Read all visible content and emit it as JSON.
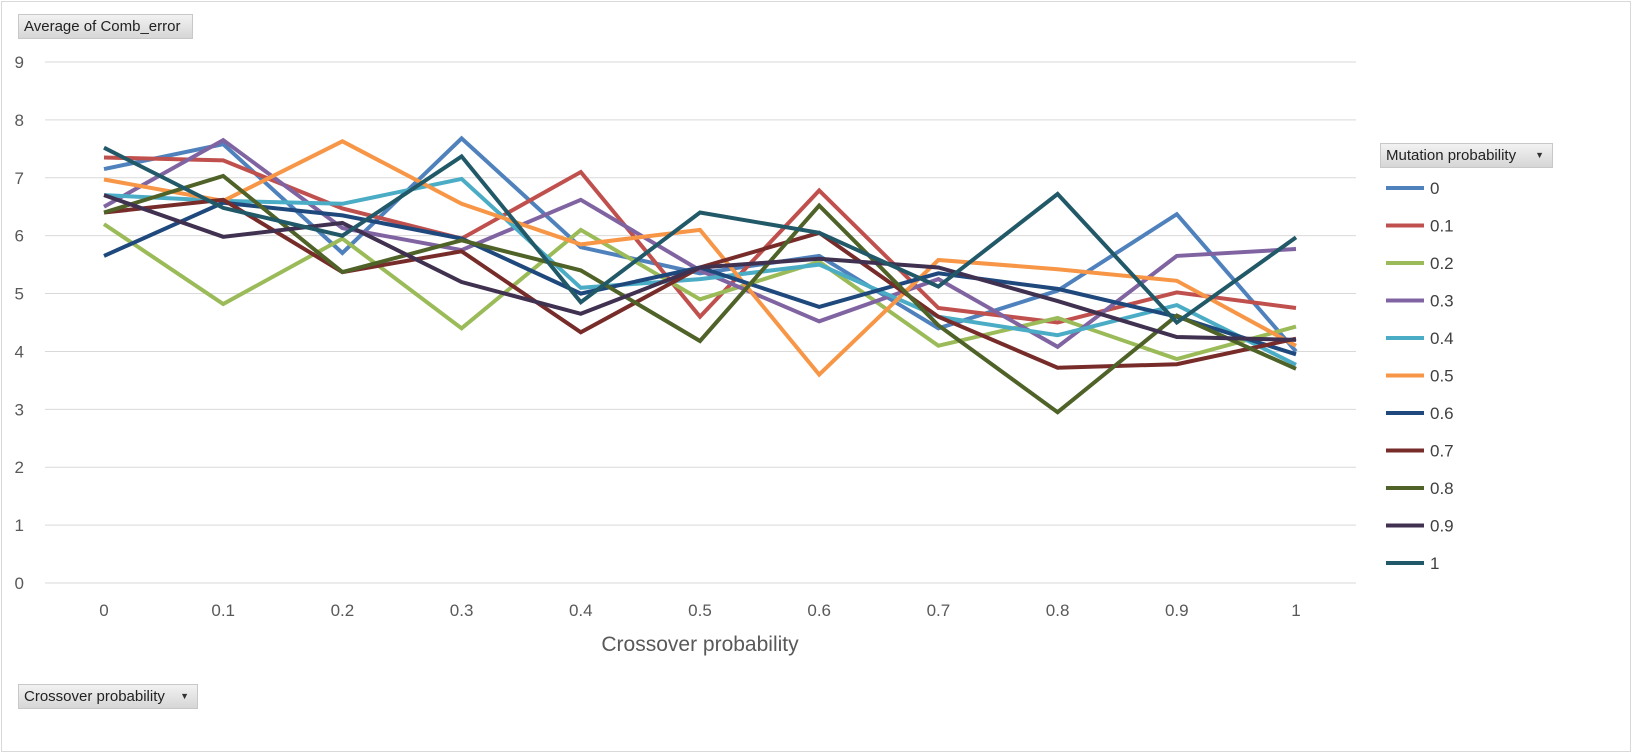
{
  "value_field_label": "Average of Comb_error",
  "axis_field_label": "Crossover probability",
  "legend_field_label": "Mutation probability",
  "dropdown_icon": "caret-down-icon",
  "chart_data": {
    "type": "line",
    "xlabel": "Crossover probability",
    "ylabel": "",
    "categories": [
      "0",
      "0.1",
      "0.2",
      "0.3",
      "0.4",
      "0.5",
      "0.6",
      "0.7",
      "0.8",
      "0.9",
      "1"
    ],
    "yticks": [
      "0",
      "1",
      "2",
      "3",
      "4",
      "5",
      "6",
      "7",
      "8",
      "9"
    ],
    "ylim": [
      0,
      9
    ],
    "grid": true,
    "legend_position": "right",
    "series": [
      {
        "name": "0",
        "color": "#4f81bd",
        "values": [
          7.15,
          7.58,
          5.7,
          7.68,
          5.8,
          5.35,
          5.65,
          4.4,
          5.05,
          6.37,
          4.0
        ]
      },
      {
        "name": "0.1",
        "color": "#c0504d",
        "values": [
          7.35,
          7.3,
          6.47,
          5.95,
          7.1,
          4.6,
          6.78,
          4.75,
          4.5,
          5.02,
          4.75
        ]
      },
      {
        "name": "0.2",
        "color": "#9bbb59",
        "values": [
          6.2,
          4.82,
          5.95,
          4.4,
          6.1,
          4.9,
          5.55,
          4.1,
          4.58,
          3.87,
          4.43
        ]
      },
      {
        "name": "0.3",
        "color": "#8064a2",
        "values": [
          6.5,
          7.65,
          6.13,
          5.75,
          6.62,
          5.4,
          4.52,
          5.25,
          4.08,
          5.65,
          5.77
        ]
      },
      {
        "name": "0.4",
        "color": "#4bacc6",
        "values": [
          6.7,
          6.6,
          6.55,
          6.98,
          5.1,
          5.25,
          5.5,
          4.6,
          4.28,
          4.8,
          3.77
        ]
      },
      {
        "name": "0.5",
        "color": "#f79646",
        "values": [
          6.97,
          6.6,
          7.63,
          6.55,
          5.85,
          6.1,
          3.6,
          5.58,
          5.42,
          5.22,
          4.1
        ]
      },
      {
        "name": "0.6",
        "color": "#1f497d",
        "values": [
          5.65,
          6.57,
          6.35,
          5.95,
          5.0,
          5.45,
          4.77,
          5.35,
          5.08,
          4.6,
          3.95
        ]
      },
      {
        "name": "0.7",
        "color": "#772c2a",
        "values": [
          6.4,
          6.62,
          5.37,
          5.73,
          4.33,
          5.45,
          6.05,
          4.6,
          3.72,
          3.78,
          4.22
        ]
      },
      {
        "name": "0.8",
        "color": "#4f6228",
        "values": [
          6.4,
          7.03,
          5.37,
          5.92,
          5.4,
          4.18,
          6.52,
          4.45,
          2.95,
          4.62,
          3.7
        ]
      },
      {
        "name": "0.9",
        "color": "#403151",
        "values": [
          6.7,
          5.98,
          6.22,
          5.2,
          4.65,
          5.45,
          5.6,
          5.45,
          4.87,
          4.25,
          4.2
        ]
      },
      {
        "name": "1",
        "color": "#215968",
        "values": [
          7.52,
          6.48,
          6.0,
          7.37,
          4.85,
          6.4,
          6.05,
          5.12,
          6.72,
          4.5,
          5.97
        ]
      }
    ]
  }
}
